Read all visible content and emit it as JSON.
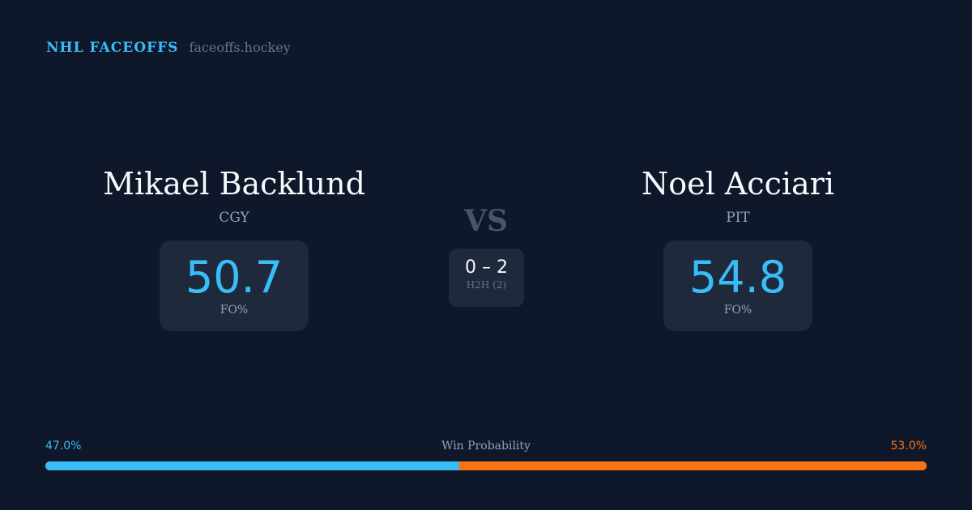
{
  "brand": {
    "name": "NHL FACEOFFS",
    "url": "faceoffs.hockey"
  },
  "left": {
    "name": "Mikael Backlund",
    "team": "CGY",
    "fo_pct": "50.7",
    "fo_label": "FO%"
  },
  "right": {
    "name": "Noel Acciari",
    "team": "PIT",
    "fo_pct": "54.8",
    "fo_label": "FO%"
  },
  "vs": "VS",
  "h2h": {
    "score": "0 – 2",
    "label": "H2H (2)"
  },
  "probability": {
    "title": "Win Probability",
    "left_label": "47.0%",
    "right_label": "53.0%",
    "left_value": 47.0,
    "right_value": 53.0,
    "left_color": "#38bdf8",
    "right_color": "#f97316"
  }
}
